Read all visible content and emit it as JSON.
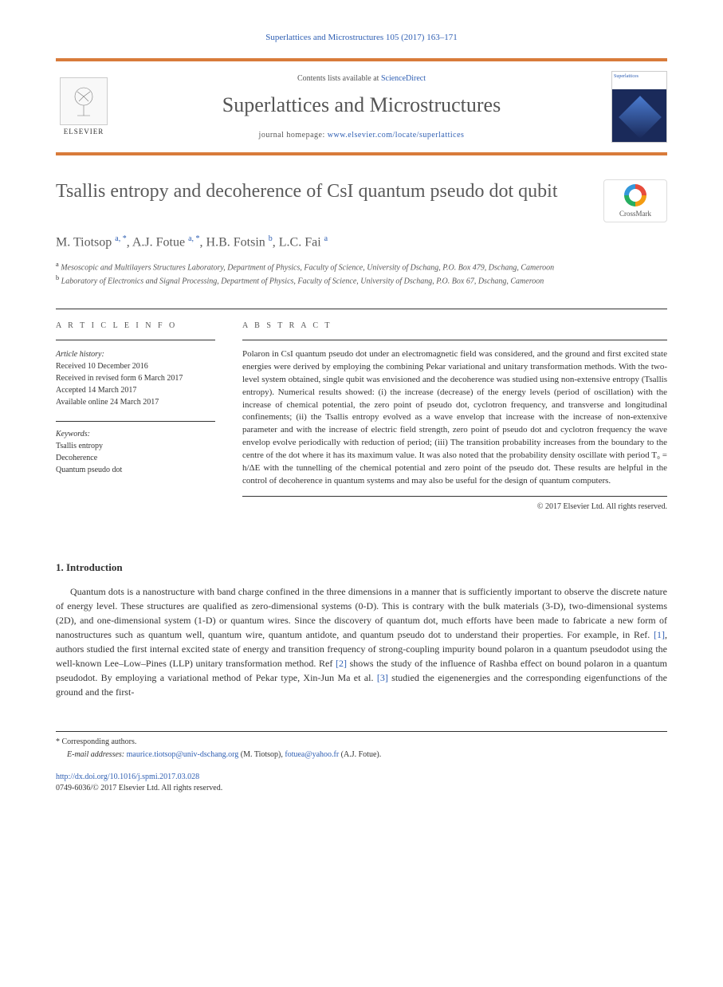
{
  "header": {
    "citation": "Superlattices and Microstructures 105 (2017) 163–171",
    "contents_prefix": "Contents lists available at ",
    "contents_link": "ScienceDirect",
    "journal_name": "Superlattices and Microstructures",
    "homepage_prefix": "journal homepage: ",
    "homepage_url": "www.elsevier.com/locate/superlattices",
    "elsevier_label": "ELSEVIER",
    "cover_label": "Superlattices"
  },
  "article": {
    "title": "Tsallis entropy and decoherence of CsI quantum pseudo dot qubit",
    "crossmark_label": "CrossMark",
    "authors_html": "M. Tiotsop <sup>a, *</sup>, A.J. Fotue <sup>a, *</sup>, H.B. Fotsin <sup>b</sup>, L.C. Fai <sup>a</sup>",
    "affiliations": {
      "a": "Mesoscopic and Multilayers Structures Laboratory, Department of Physics, Faculty of Science, University of Dschang, P.O. Box 479, Dschang, Cameroon",
      "b": "Laboratory of Electronics and Signal Processing, Department of Physics, Faculty of Science, University of Dschang, P.O. Box 67, Dschang, Cameroon"
    }
  },
  "info": {
    "section_label": "A R T I C L E   I N F O",
    "history_head": "Article history:",
    "received": "Received 10 December 2016",
    "revised": "Received in revised form 6 March 2017",
    "accepted": "Accepted 14 March 2017",
    "online": "Available online 24 March 2017",
    "keywords_head": "Keywords:",
    "keywords": [
      "Tsallis entropy",
      "Decoherence",
      "Quantum pseudo dot"
    ]
  },
  "abstract": {
    "section_label": "A B S T R A C T",
    "text": "Polaron in CsI quantum pseudo dot under an electromagnetic field was considered, and the ground and first excited state energies were derived by employing the combining Pekar variational and unitary transformation methods. With the two-level system obtained, single qubit was envisioned and the decoherence was studied using non-extensive entropy (Tsallis entropy). Numerical results showed: (i) the increase (decrease) of the energy levels (period of oscillation) with the increase of chemical potential, the zero point of pseudo dot, cyclotron frequency, and transverse and longitudinal confinements; (ii) the Tsallis entropy evolved as a wave envelop that increase with the increase of non-extenxive parameter and with the increase of electric field strength, zero point of pseudo dot and cyclotron frequency the wave envelop evolve periodically with reduction of period; (iii) The transition probability increases from the boundary to the centre of the dot where it has its maximum value. It was also noted that the probability density oscillate with period T₀ = h/ΔE with the tunnelling of the chemical potential and zero point of the pseudo dot. These results are helpful in the control of decoherence in quantum systems and may also be useful for the design of quantum computers.",
    "copyright": "© 2017 Elsevier Ltd. All rights reserved."
  },
  "intro": {
    "heading": "1. Introduction",
    "body_pre": "Quantum dots is a nanostructure with band charge confined in the three dimensions in a manner that is sufficiently important to observe the discrete nature of energy level. These structures are qualified as zero-dimensional systems (0-D). This is contrary with the bulk materials (3-D), two-dimensional systems (2D), and one-dimensional system (1-D) or quantum wires. Since the discovery of quantum dot, much efforts have been made to fabricate a new form of nanostructures such as quantum well, quantum wire, quantum antidote, and quantum pseudo dot to understand their properties. For example, in Ref. ",
    "ref1": "[1]",
    "body_mid1": ", authors studied the first internal excited state of energy and transition frequency of strong-coupling impurity bound polaron in a quantum pseudodot using the well-known Lee–Low–Pines (LLP) unitary transformation method. Ref ",
    "ref2": "[2]",
    "body_mid2": " shows the study of the influence of Rashba effect on bound polaron in a quantum pseudodot. By employing a variational method of Pekar type, Xin-Jun Ma et al. ",
    "ref3": "[3]",
    "body_post": " studied the eigenenergies and the corresponding eigenfunctions of the ground and the first-"
  },
  "footer": {
    "corresponding": "* Corresponding authors.",
    "email_label": "E-mail addresses:",
    "email1": "maurice.tiotsop@univ-dschang.org",
    "email1_name": " (M. Tiotsop), ",
    "email2": "fotuea@yahoo.fr",
    "email2_name": " (A.J. Fotue).",
    "doi": "http://dx.doi.org/10.1016/j.spmi.2017.03.028",
    "issn_copyright": "0749-6036/© 2017 Elsevier Ltd. All rights reserved."
  },
  "colors": {
    "link": "#2f5fb3",
    "accent": "#d87b3a",
    "text_muted": "#5a5a5a"
  }
}
